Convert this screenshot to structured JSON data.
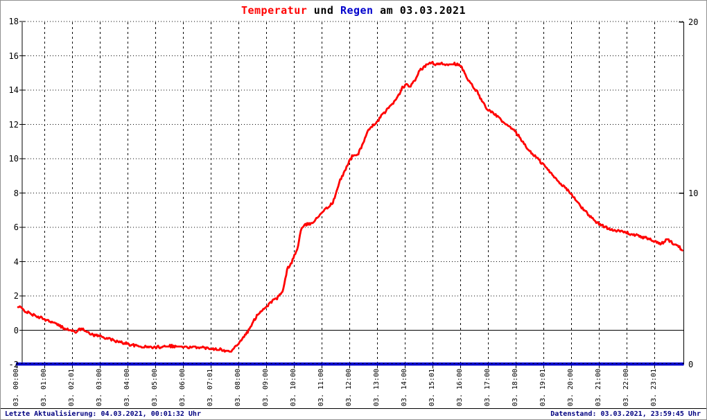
{
  "title": {
    "temperatur": "Temperatur",
    "und": " und ",
    "regen": "Regen",
    "date": " am 03.03.2021"
  },
  "statusbar": {
    "left": "Letzte Aktualisierung: 04.03.2021, 00:01:32 Uhr",
    "right": "Datenstand: 03.03.2021, 23:59:45 Uhr"
  },
  "colors": {
    "temperature_line": "#ff0000",
    "rain_line": "#0000cc",
    "title_regen": "#0000cc",
    "status_text": "#000080",
    "grid": "#000000",
    "background": "#ffffff"
  },
  "chart_data": {
    "type": "line",
    "title": "Temperatur und Regen am 03.03.2021",
    "grid": true,
    "y_left": {
      "label": "Temperatur",
      "min": -2,
      "max": 18,
      "step": 2,
      "tick_labels": [
        "18",
        "16",
        "14",
        "12",
        "10",
        "8",
        "6",
        "4",
        "2",
        "0",
        "-2"
      ],
      "zero_line": true
    },
    "y_right": {
      "label": "Regen",
      "min": 0,
      "max": 20,
      "tick_labels": [
        "20",
        "10",
        "0"
      ],
      "tick_values": [
        20,
        10,
        0
      ]
    },
    "x": {
      "unit": "hours",
      "min": 0,
      "max": 24.05,
      "tick_labels": [
        "03. 00:00",
        "03. 01:00",
        "03. 02:01",
        "03. 03:00",
        "03. 04:00",
        "03. 05:00",
        "03. 06:00",
        "03. 07:01",
        "03. 08:00",
        "03. 09:00",
        "03. 10:00",
        "03. 11:00",
        "03. 12:00",
        "03. 13:00",
        "03. 14:00",
        "03. 15:01",
        "03. 16:00",
        "03. 17:00",
        "03. 18:00",
        "03. 19:01",
        "03. 20:00",
        "03. 21:00",
        "03. 22:00",
        "03. 23:01"
      ]
    },
    "series": [
      {
        "name": "Temperatur",
        "axis": "left",
        "color": "#ff0000",
        "points": [
          [
            0.0,
            1.3
          ],
          [
            0.1,
            1.35
          ],
          [
            0.3,
            1.1
          ],
          [
            0.5,
            0.95
          ],
          [
            0.7,
            0.8
          ],
          [
            1.0,
            0.65
          ],
          [
            1.3,
            0.45
          ],
          [
            1.6,
            0.2
          ],
          [
            1.9,
            0.0
          ],
          [
            2.1,
            -0.1
          ],
          [
            2.25,
            0.05
          ],
          [
            2.4,
            0.1
          ],
          [
            2.6,
            -0.2
          ],
          [
            3.0,
            -0.35
          ],
          [
            3.3,
            -0.5
          ],
          [
            3.6,
            -0.65
          ],
          [
            4.0,
            -0.8
          ],
          [
            4.4,
            -0.95
          ],
          [
            5.0,
            -1.0
          ],
          [
            5.4,
            -0.9
          ],
          [
            5.8,
            -0.95
          ],
          [
            6.2,
            -1.0
          ],
          [
            6.6,
            -1.0
          ],
          [
            7.0,
            -1.05
          ],
          [
            7.3,
            -1.1
          ],
          [
            7.55,
            -1.25
          ],
          [
            7.75,
            -1.15
          ],
          [
            8.0,
            -0.75
          ],
          [
            8.2,
            -0.35
          ],
          [
            8.4,
            0.1
          ],
          [
            8.66,
            0.9
          ],
          [
            9.0,
            1.4
          ],
          [
            9.2,
            1.7
          ],
          [
            9.4,
            1.9
          ],
          [
            9.6,
            2.3
          ],
          [
            9.75,
            3.6
          ],
          [
            9.9,
            3.95
          ],
          [
            10.0,
            4.35
          ],
          [
            10.1,
            4.65
          ],
          [
            10.25,
            5.9
          ],
          [
            10.4,
            6.15
          ],
          [
            10.6,
            6.2
          ],
          [
            10.8,
            6.5
          ],
          [
            11.0,
            6.9
          ],
          [
            11.2,
            7.15
          ],
          [
            11.4,
            7.45
          ],
          [
            11.65,
            8.7
          ],
          [
            11.85,
            9.4
          ],
          [
            12.0,
            9.9
          ],
          [
            12.1,
            10.15
          ],
          [
            12.3,
            10.25
          ],
          [
            12.5,
            11.0
          ],
          [
            12.66,
            11.6
          ],
          [
            13.0,
            12.2
          ],
          [
            13.2,
            12.6
          ],
          [
            13.4,
            12.95
          ],
          [
            13.7,
            13.5
          ],
          [
            13.9,
            14.15
          ],
          [
            14.05,
            14.3
          ],
          [
            14.2,
            14.2
          ],
          [
            14.35,
            14.55
          ],
          [
            14.5,
            15.1
          ],
          [
            14.7,
            15.35
          ],
          [
            14.95,
            15.65
          ],
          [
            15.1,
            15.45
          ],
          [
            15.3,
            15.55
          ],
          [
            15.5,
            15.5
          ],
          [
            15.7,
            15.55
          ],
          [
            15.9,
            15.5
          ],
          [
            16.05,
            15.3
          ],
          [
            16.25,
            14.6
          ],
          [
            16.45,
            14.2
          ],
          [
            16.6,
            13.9
          ],
          [
            16.9,
            13.0
          ],
          [
            17.1,
            12.7
          ],
          [
            17.3,
            12.5
          ],
          [
            17.6,
            12.0
          ],
          [
            17.9,
            11.7
          ],
          [
            18.15,
            11.2
          ],
          [
            18.4,
            10.6
          ],
          [
            18.65,
            10.2
          ],
          [
            18.9,
            9.8
          ],
          [
            19.15,
            9.35
          ],
          [
            19.4,
            8.9
          ],
          [
            19.65,
            8.5
          ],
          [
            19.9,
            8.1
          ],
          [
            20.15,
            7.6
          ],
          [
            20.4,
            7.1
          ],
          [
            20.65,
            6.7
          ],
          [
            20.9,
            6.3
          ],
          [
            21.15,
            6.05
          ],
          [
            21.4,
            5.9
          ],
          [
            21.65,
            5.8
          ],
          [
            21.9,
            5.75
          ],
          [
            22.15,
            5.6
          ],
          [
            22.4,
            5.5
          ],
          [
            22.65,
            5.4
          ],
          [
            22.9,
            5.25
          ],
          [
            23.15,
            5.05
          ],
          [
            23.3,
            5.1
          ],
          [
            23.45,
            5.3
          ],
          [
            23.6,
            5.15
          ],
          [
            23.8,
            4.95
          ],
          [
            24.0,
            4.7
          ]
        ]
      },
      {
        "name": "Regen",
        "axis": "right",
        "color": "#0000cc",
        "points": [
          [
            0,
            0
          ],
          [
            24.05,
            0
          ]
        ]
      }
    ]
  }
}
